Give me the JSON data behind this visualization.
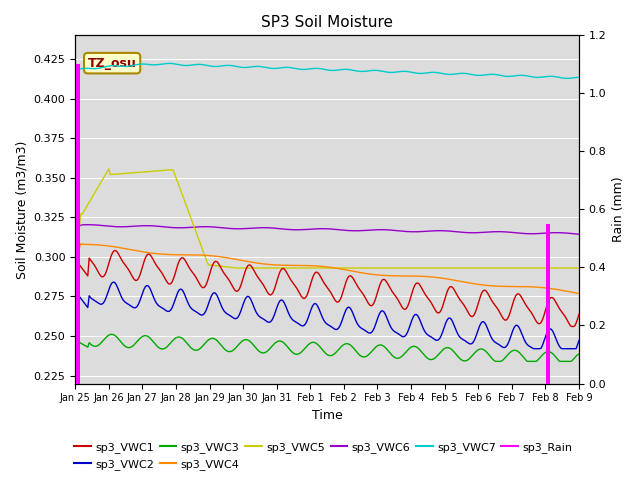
{
  "title": "SP3 Soil Moisture",
  "xlabel": "Time",
  "ylabel_left": "Soil Moisture (m3/m3)",
  "ylabel_right": "Rain (mm)",
  "annotation": "TZ_osu",
  "ylim_left": [
    0.22,
    0.44
  ],
  "ylim_right": [
    0.0,
    1.2
  ],
  "bg_color": "#dcdcdc",
  "fig_color": "#ffffff",
  "series_colors": {
    "sp3_VWC1": "#cc0000",
    "sp3_VWC2": "#0000cc",
    "sp3_VWC3": "#00aa00",
    "sp3_VWC4": "#ff8800",
    "sp3_VWC5": "#cccc00",
    "sp3_VWC6": "#9900cc",
    "sp3_VWC7": "#00cccc",
    "sp3_Rain": "#ff00ff"
  },
  "num_points": 360,
  "x_tick_labels": [
    "Jan 25",
    "Jan 26",
    "Jan 27",
    "Jan 28",
    "Jan 29",
    "Jan 30",
    "Jan 31",
    "Feb 1",
    "Feb 2",
    "Feb 3",
    "Feb 4",
    "Feb 5",
    "Feb 6",
    "Feb 7",
    "Feb 8",
    "Feb 9"
  ],
  "x_tick_positions": [
    0,
    24,
    48,
    72,
    96,
    120,
    144,
    168,
    192,
    216,
    240,
    264,
    288,
    312,
    336,
    360
  ]
}
